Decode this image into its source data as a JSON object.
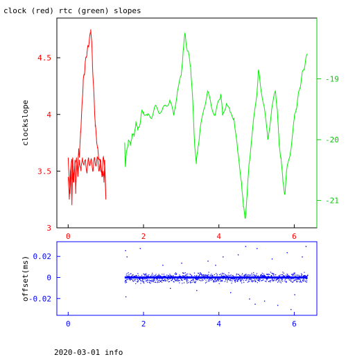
{
  "title": "clock (red) rtc (green) slopes",
  "footer": "2020-03-01 info",
  "colors": {
    "clock": "#ff0000",
    "rtc": "#00ee00",
    "offset": "#0000ff",
    "axis_top": "#ff0000",
    "axis_right": "#00cc00",
    "axis_bottom": "#0000ff",
    "frame": "#000000"
  },
  "chart_data": [
    {
      "type": "line",
      "title": "clock (red) rtc (green) slopes",
      "ylabel": "clockslope",
      "xlim": [
        -0.3,
        6.6
      ],
      "ylim_left": [
        3.0,
        4.85
      ],
      "ylim_right": [
        -21.45,
        -18.0
      ],
      "grid": false,
      "legend": "none",
      "x_ticks": [
        0,
        2,
        4,
        6
      ],
      "x_tick_labels": [
        "0",
        "2",
        "4",
        "6"
      ],
      "y_ticks_left": [
        3,
        3.5,
        4,
        4.5
      ],
      "y_tick_labels_left": [
        "3",
        "3.5",
        "4",
        "4.5"
      ],
      "y_ticks_right": [
        -21,
        -20,
        -19
      ],
      "y_tick_labels_right": [
        "-21",
        "-20",
        "-19"
      ],
      "series": [
        {
          "name": "clock",
          "axis": "left",
          "x": [
            0.0,
            0.03,
            0.05,
            0.08,
            0.1,
            0.12,
            0.15,
            0.18,
            0.2,
            0.23,
            0.25,
            0.28,
            0.3,
            0.33,
            0.35,
            0.38,
            0.4,
            0.43,
            0.45,
            0.48,
            0.5,
            0.53,
            0.55,
            0.58,
            0.6,
            0.63,
            0.65,
            0.68,
            0.7,
            0.72,
            0.75,
            0.78,
            0.8,
            0.83,
            0.85,
            0.88,
            0.9,
            0.93,
            0.95,
            0.97,
            1.0,
            0.97,
            0.93,
            0.9,
            0.86,
            0.82,
            0.78,
            0.74,
            0.7,
            0.66,
            0.62,
            0.58,
            0.54,
            0.5,
            0.46,
            0.42,
            0.38,
            0.34,
            0.3,
            0.26,
            0.22,
            0.18,
            0.14,
            0.1,
            0.06,
            0.03,
            0.0
          ],
          "y": [
            3.62,
            3.45,
            3.3,
            3.55,
            3.2,
            3.62,
            3.4,
            3.6,
            3.3,
            3.58,
            3.5,
            3.7,
            3.62,
            3.85,
            3.95,
            4.15,
            4.3,
            4.35,
            4.45,
            4.5,
            4.55,
            4.6,
            4.62,
            4.7,
            4.75,
            4.6,
            4.4,
            4.2,
            4.05,
            3.9,
            3.8,
            3.7,
            3.65,
            3.6,
            3.55,
            3.5,
            3.45,
            3.5,
            3.4,
            3.6,
            3.25,
            3.55,
            3.62,
            3.45,
            3.6,
            3.5,
            3.62,
            3.55,
            3.62,
            3.5,
            3.6,
            3.55,
            3.62,
            3.48,
            3.6,
            3.55,
            3.62,
            3.5,
            3.6,
            3.45,
            3.62,
            3.55,
            3.4,
            3.6,
            3.5,
            3.25,
            3.45
          ]
        },
        {
          "name": "rtc",
          "axis": "right",
          "x": [
            1.5,
            1.52,
            1.55,
            1.6,
            1.65,
            1.7,
            1.75,
            1.8,
            1.85,
            1.9,
            1.95,
            2.0,
            2.1,
            2.2,
            2.3,
            2.4,
            2.5,
            2.6,
            2.7,
            2.8,
            2.9,
            3.0,
            3.05,
            3.1,
            3.15,
            3.2,
            3.25,
            3.3,
            3.35,
            3.4,
            3.45,
            3.5,
            3.6,
            3.7,
            3.8,
            3.9,
            4.0,
            4.05,
            4.1,
            4.2,
            4.3,
            4.4,
            4.5,
            4.6,
            4.65,
            4.7,
            4.75,
            4.8,
            4.9,
            5.0,
            5.05,
            5.1,
            5.2,
            5.3,
            5.4,
            5.5,
            5.55,
            5.6,
            5.65,
            5.7,
            5.75,
            5.8,
            5.9,
            6.0,
            6.05,
            6.1,
            6.15,
            6.2,
            6.25,
            6.3,
            6.35
          ],
          "y": [
            -20.05,
            -20.45,
            -20.2,
            -20.0,
            -20.1,
            -19.9,
            -19.95,
            -19.7,
            -19.85,
            -19.75,
            -19.55,
            -19.55,
            -19.6,
            -19.65,
            -19.45,
            -19.55,
            -19.5,
            -19.45,
            -19.35,
            -19.6,
            -19.2,
            -18.95,
            -18.55,
            -18.25,
            -18.5,
            -18.6,
            -18.8,
            -19.3,
            -20.0,
            -20.4,
            -20.1,
            -19.85,
            -19.5,
            -19.2,
            -19.45,
            -19.6,
            -19.35,
            -19.25,
            -19.6,
            -19.4,
            -19.55,
            -19.65,
            -20.2,
            -20.7,
            -21.1,
            -21.3,
            -20.9,
            -20.4,
            -19.8,
            -19.3,
            -18.85,
            -19.1,
            -19.45,
            -20.0,
            -19.5,
            -19.2,
            -19.5,
            -20.1,
            -20.3,
            -20.7,
            -20.9,
            -20.5,
            -20.2,
            -19.65,
            -19.5,
            -19.3,
            -19.15,
            -18.95,
            -18.85,
            -18.7,
            -18.6
          ]
        }
      ]
    },
    {
      "type": "scatter",
      "ylabel": "offset(ms)",
      "xlim": [
        -0.3,
        6.6
      ],
      "ylim": [
        -0.036,
        0.034
      ],
      "grid": false,
      "legend": "none",
      "x_ticks": [
        0,
        2,
        4,
        6
      ],
      "x_tick_labels": [
        "0",
        "2",
        "4",
        "6"
      ],
      "y_ticks": [
        -0.02,
        0,
        0.02
      ],
      "y_tick_labels": [
        "-0.02",
        "0",
        "0.02"
      ],
      "series": [
        {
          "name": "offset",
          "x_range": [
            1.5,
            6.35
          ],
          "center": 0.0,
          "spread": 0.004,
          "outliers": [
            [
              1.51,
              0.026
            ],
            [
              1.52,
              -0.018
            ],
            [
              1.55,
              0.02
            ],
            [
              1.9,
              0.028
            ],
            [
              2.5,
              0.012
            ],
            [
              2.7,
              -0.01
            ],
            [
              3.0,
              0.014
            ],
            [
              3.4,
              -0.012
            ],
            [
              3.7,
              0.016
            ],
            [
              4.1,
              0.02
            ],
            [
              4.3,
              -0.014
            ],
            [
              4.5,
              0.022
            ],
            [
              4.7,
              0.03
            ],
            [
              4.8,
              -0.02
            ],
            [
              5.0,
              0.028
            ],
            [
              5.2,
              -0.022
            ],
            [
              5.4,
              0.018
            ],
            [
              5.55,
              -0.026
            ],
            [
              5.8,
              0.024
            ],
            [
              6.0,
              -0.016
            ],
            [
              6.2,
              0.02
            ],
            [
              6.3,
              0.03
            ],
            [
              5.9,
              -0.03
            ],
            [
              4.95,
              -0.025
            ],
            [
              3.9,
              0.012
            ]
          ]
        }
      ]
    }
  ]
}
